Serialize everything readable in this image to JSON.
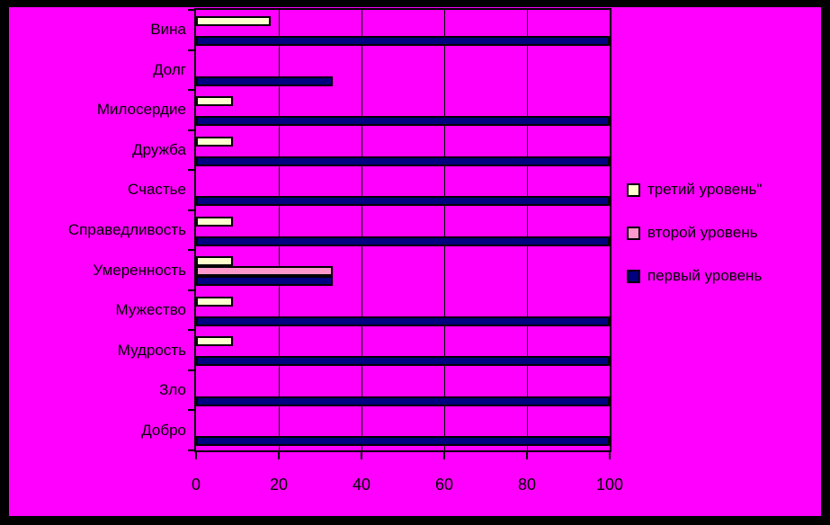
{
  "frame": {
    "border_color": "#000000",
    "background_color": "#FF00FF"
  },
  "chart_data": {
    "type": "bar",
    "orientation": "horizontal",
    "title": "",
    "xlabel": "",
    "ylabel": "",
    "xlim": [
      0,
      100
    ],
    "x_ticks": [
      "0",
      "20",
      "40",
      "60",
      "80",
      "100"
    ],
    "x_tick_values": [
      0,
      20,
      40,
      60,
      80,
      100
    ],
    "grid": true,
    "gridline_color": "#000000",
    "axis_color": "#000000",
    "text_color": "#000000",
    "plot_background": "#FF00FF",
    "legend_position": "right",
    "categories": [
      "Вина",
      "Долг",
      "Милосердие",
      "Дружба",
      "Счастье",
      "Справедливость",
      "Умеренность",
      "Мужество",
      "Мудрость",
      "Зло",
      "Добро"
    ],
    "series": [
      {
        "name": "третий уровень\"",
        "color": "#FFFFCC",
        "values": [
          18,
          0,
          9,
          9,
          0,
          9,
          9,
          9,
          9,
          0,
          0
        ]
      },
      {
        "name": "второй уровень",
        "color": "#FF99CC",
        "values": [
          0,
          0,
          0,
          0,
          0,
          0,
          33,
          0,
          0,
          0,
          0
        ]
      },
      {
        "name": "первый уровень",
        "color": "#000080",
        "values": [
          100,
          33,
          100,
          100,
          100,
          100,
          33,
          100,
          100,
          100,
          100
        ]
      }
    ]
  }
}
